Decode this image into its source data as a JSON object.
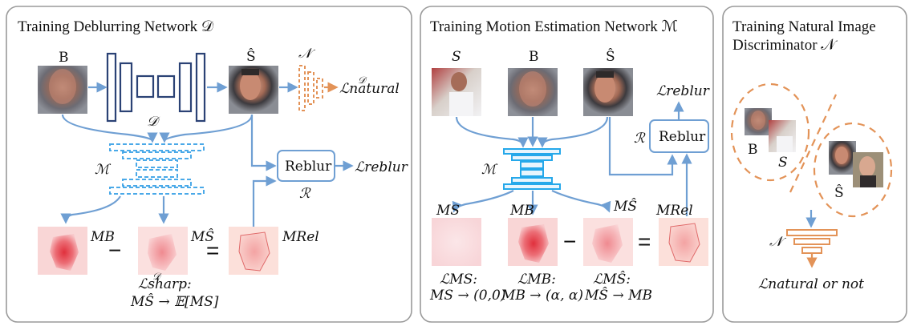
{
  "panel1": {
    "title": "Training Deblurring Network 𝒟",
    "input_label": "B",
    "output_label": "Ŝ",
    "deblur_net_label": "𝒟",
    "motion_net_label": "ℳ",
    "disc_label": "𝒩",
    "loss_natural": "ℒnatural",
    "loss_natural_sup": "𝒟",
    "reblur_label": "Reblur",
    "reblur_op": "ℛ",
    "loss_reblur": "ℒreblur",
    "mb_label": "MB",
    "ms_hat_label": "MŜ",
    "mrel_label": "MRel",
    "minus": "−",
    "equals": "=",
    "loss_sharp_line1": "ℒsharp:",
    "loss_sharp_sup": "𝒟",
    "loss_sharp_line2": "MŜ → 𝔼[MS]"
  },
  "panel2": {
    "title": "Training Motion Estimation Network ℳ",
    "s_label": "S",
    "b_label": "B",
    "shat_label": "Ŝ",
    "motion_net_label": "ℳ",
    "reblur_label": "Reblur",
    "reblur_op": "ℛ",
    "loss_reblur": "ℒreblur",
    "ms_label": "MS",
    "mb_label": "MB",
    "ms_hat_label": "MŜ",
    "mrel_label": "MRel",
    "minus": "−",
    "equals": "=",
    "loss_ms_l1": "ℒMS:",
    "loss_ms_l2": "MS → (0,0)",
    "loss_mb_l1": "ℒMB:",
    "loss_mb_l2": "MB → (α, α)",
    "loss_mshat_l1": "ℒMŜ:",
    "loss_mshat_l2": "MŜ → MB"
  },
  "panel3": {
    "title_l1": "Training Natural Image",
    "title_l2": "Discriminator 𝒩",
    "b_label": "B",
    "s_label": "S",
    "shat_label": "Ŝ",
    "disc_label": "𝒩",
    "loss": "ℒnatural or not"
  },
  "colors": {
    "blue_arrow": "#6f9fd3",
    "deblur_net": "#2b4275",
    "motion_net": "#25a8ea",
    "discriminator": "#e39358",
    "motion_map": "#e0303c"
  }
}
